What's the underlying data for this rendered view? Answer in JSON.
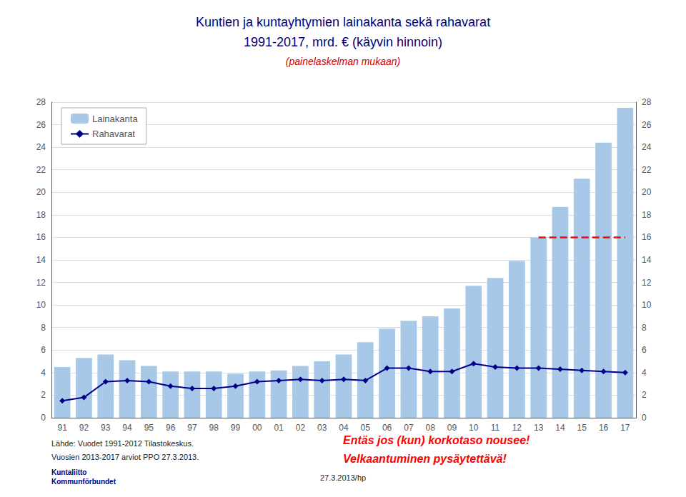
{
  "chart_data": {
    "type": "bar",
    "title": "Kuntien ja kuntayhtymien lainakanta sekä rahavarat\n1991-2017, mrd. € (käyvin hinnoin)",
    "subtitle": "(painelaskelman mukaan)",
    "categories": [
      "91",
      "92",
      "93",
      "94",
      "95",
      "96",
      "97",
      "98",
      "99",
      "00",
      "01",
      "02",
      "03",
      "04",
      "05",
      "06",
      "07",
      "08",
      "09",
      "10",
      "11",
      "12",
      "13",
      "14",
      "15",
      "16",
      "17"
    ],
    "series": [
      {
        "name": "Lainakanta",
        "type": "bar",
        "color": "#a8c8e8",
        "values": [
          4.5,
          5.3,
          5.6,
          5.1,
          4.6,
          4.1,
          4.1,
          4.1,
          3.9,
          4.1,
          4.2,
          4.6,
          5.0,
          5.6,
          6.7,
          7.9,
          8.6,
          9.0,
          9.7,
          11.7,
          12.4,
          13.9,
          16.0,
          18.7,
          21.2,
          24.4,
          27.5
        ]
      },
      {
        "name": "Rahavarat",
        "type": "line",
        "color": "#00008B",
        "marker": "diamond",
        "values": [
          1.5,
          1.8,
          3.2,
          3.3,
          3.2,
          2.8,
          2.6,
          2.6,
          2.8,
          3.2,
          3.3,
          3.4,
          3.3,
          3.4,
          3.3,
          4.4,
          4.4,
          4.1,
          4.1,
          4.8,
          4.5,
          4.4,
          4.4,
          4.3,
          4.2,
          4.1,
          4.0
        ]
      }
    ],
    "reference_line": {
      "value": 16.0,
      "start": "13",
      "color": "red",
      "line_style": "dashed"
    },
    "ylim": [
      0,
      28
    ],
    "yticks": [
      0,
      2,
      4,
      6,
      8,
      10,
      12,
      14,
      16,
      18,
      20,
      22,
      24,
      26,
      28
    ],
    "y2lim": [
      0,
      28
    ],
    "y2ticks": [
      0,
      2,
      4,
      6,
      8,
      10,
      12,
      14,
      16,
      18,
      20,
      22,
      24,
      26,
      28
    ],
    "grid": true,
    "legend": "upper left",
    "annotations": [
      {
        "text": "Lähde: Vuodet 1991-2012 Tilastokeskus."
      },
      {
        "text": "Vuosien 2013-2017 arviot PPO 27.3.2013."
      },
      {
        "text": "27.3.2013/hp"
      },
      {
        "text": "Entäs jos (kun) korkotaso nousee!",
        "color": "red"
      },
      {
        "text": "Velkaantuminen pysäytettävä!",
        "color": "red"
      },
      {
        "text": "Kuntaliitto\nKommunförbundet"
      }
    ]
  }
}
